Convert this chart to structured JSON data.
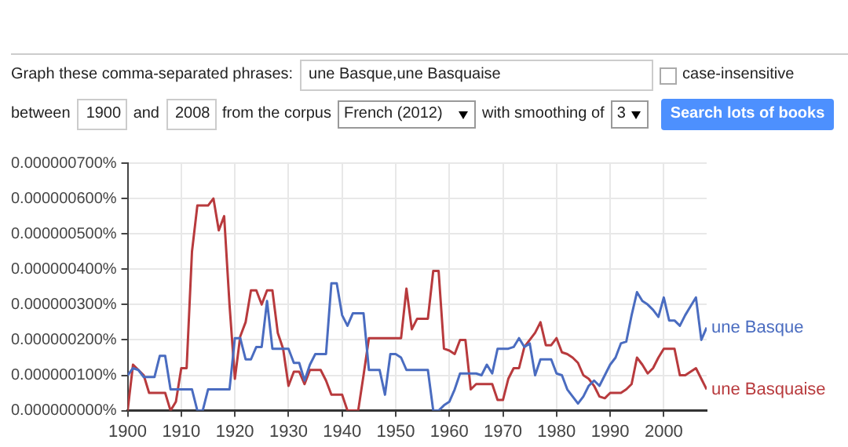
{
  "chart_data": {
    "type": "line",
    "annotations": [
      "Graph these comma-separated phrases:",
      "une Basque,une Basquaise",
      "case-insensitive",
      "between",
      "1900",
      "and",
      "2008",
      "from the corpus",
      "French (2012)",
      "with smoothing of",
      "3",
      "Search lots of books"
    ],
    "x": [
      1900,
      1901,
      1902,
      1903,
      1904,
      1905,
      1906,
      1907,
      1908,
      1909,
      1910,
      1911,
      1912,
      1913,
      1914,
      1915,
      1916,
      1917,
      1918,
      1919,
      1920,
      1921,
      1922,
      1923,
      1924,
      1925,
      1926,
      1927,
      1928,
      1929,
      1930,
      1931,
      1932,
      1933,
      1934,
      1935,
      1936,
      1937,
      1938,
      1939,
      1940,
      1941,
      1942,
      1943,
      1944,
      1945,
      1946,
      1947,
      1948,
      1949,
      1950,
      1951,
      1952,
      1953,
      1954,
      1955,
      1956,
      1957,
      1958,
      1959,
      1960,
      1961,
      1962,
      1963,
      1964,
      1965,
      1966,
      1967,
      1968,
      1969,
      1970,
      1971,
      1972,
      1973,
      1974,
      1975,
      1976,
      1977,
      1978,
      1979,
      1980,
      1981,
      1982,
      1983,
      1984,
      1985,
      1986,
      1987,
      1988,
      1989,
      1990,
      1991,
      1992,
      1993,
      1994,
      1995,
      1996,
      1997,
      1998,
      1999,
      2000,
      2001,
      2002,
      2003,
      2004,
      2005,
      2006,
      2007,
      2008
    ],
    "series": [
      {
        "name": "une Basque",
        "color": "#4a6cc0",
        "values": [
          1e-07,
          1.2e-07,
          1.15e-07,
          9.5e-08,
          9.5e-08,
          9.5e-08,
          1.55e-07,
          1.55e-07,
          6e-08,
          6e-08,
          6e-08,
          6e-08,
          6e-08,
          0,
          0,
          6e-08,
          6e-08,
          6e-08,
          6e-08,
          6e-08,
          2.05e-07,
          2.05e-07,
          1.45e-07,
          1.45e-07,
          1.8e-07,
          1.8e-07,
          3.1e-07,
          1.75e-07,
          1.75e-07,
          1.75e-07,
          1.75e-07,
          1.35e-07,
          1.35e-07,
          8.5e-08,
          1.3e-07,
          1.6e-07,
          1.6e-07,
          1.6e-07,
          3.6e-07,
          3.6e-07,
          2.7e-07,
          2.4e-07,
          2.75e-07,
          2.75e-07,
          2.75e-07,
          1.15e-07,
          1.15e-07,
          1.15e-07,
          4.5e-08,
          1.6e-07,
          1.6e-07,
          1.5e-07,
          1.15e-07,
          1.15e-07,
          1.15e-07,
          1.15e-07,
          1.15e-07,
          0,
          0,
          1.5e-08,
          2.5e-08,
          6e-08,
          1.05e-07,
          1.05e-07,
          1.05e-07,
          1.05e-07,
          1e-07,
          1.3e-07,
          1.05e-07,
          1.75e-07,
          1.75e-07,
          1.75e-07,
          1.8e-07,
          2.05e-07,
          1.8e-07,
          1.9e-07,
          1e-07,
          1.45e-07,
          1.45e-07,
          1.45e-07,
          1.05e-07,
          1e-07,
          6e-08,
          4e-08,
          2e-08,
          4e-08,
          7e-08,
          8.5e-08,
          7e-08,
          1e-07,
          1.3e-07,
          1.5e-07,
          1.9e-07,
          1.95e-07,
          2.7e-07,
          3.35e-07,
          3.1e-07,
          3e-07,
          2.85e-07,
          2.65e-07,
          3.2e-07,
          2.55e-07,
          2.55e-07,
          2.4e-07,
          2.7e-07,
          2.95e-07,
          3.2e-07,
          2e-07,
          2.35e-07
        ]
      },
      {
        "name": "une Basquaise",
        "color": "#b83a3d",
        "values": [
          0,
          1.3e-07,
          1.15e-07,
          1e-07,
          5e-08,
          5e-08,
          5e-08,
          5e-08,
          0,
          2.5e-08,
          1.2e-07,
          1.2e-07,
          4.5e-07,
          5.8e-07,
          5.8e-07,
          5.8e-07,
          6e-07,
          5.1e-07,
          5.5e-07,
          3e-07,
          9e-08,
          2.1e-07,
          2.5e-07,
          3.4e-07,
          3.4e-07,
          3e-07,
          3.4e-07,
          3.4e-07,
          2.2e-07,
          1.75e-07,
          7e-08,
          1.1e-07,
          1.1e-07,
          7.5e-08,
          1.15e-07,
          1.15e-07,
          1.15e-07,
          8.5e-08,
          4.5e-08,
          4.5e-08,
          4.5e-08,
          0,
          0,
          0,
          1e-07,
          2.05e-07,
          2.05e-07,
          2.05e-07,
          2.05e-07,
          2.05e-07,
          2.05e-07,
          2.05e-07,
          3.45e-07,
          2.3e-07,
          2.6e-07,
          2.6e-07,
          2.6e-07,
          3.95e-07,
          3.95e-07,
          1.75e-07,
          1.7e-07,
          1.6e-07,
          2e-07,
          2e-07,
          6e-08,
          7.5e-08,
          7.5e-08,
          7.5e-08,
          7.5e-08,
          3e-08,
          3e-08,
          9e-08,
          1.2e-07,
          1.2e-07,
          1.8e-07,
          2e-07,
          2.2e-07,
          2.5e-07,
          1.85e-07,
          1.85e-07,
          2.05e-07,
          1.65e-07,
          1.6e-07,
          1.5e-07,
          1.35e-07,
          1e-07,
          9e-08,
          7e-08,
          4e-08,
          3.5e-08,
          5e-08,
          5e-08,
          5e-08,
          6e-08,
          7.5e-08,
          1.5e-07,
          1.3e-07,
          1.05e-07,
          1.2e-07,
          1.5e-07,
          1.75e-07,
          1.75e-07,
          1.75e-07,
          1e-07,
          1e-07,
          1.1e-07,
          1.2e-07,
          9e-08,
          6e-08
        ]
      }
    ],
    "xlim": [
      1900,
      2008
    ],
    "xticks": [
      1900,
      1910,
      1920,
      1930,
      1940,
      1950,
      1960,
      1970,
      1980,
      1990,
      2000
    ],
    "ylim": [
      0,
      7e-07
    ],
    "yticks": [
      {
        "value": 0,
        "label": "0.000000000%"
      },
      {
        "value": 1e-07,
        "label": "0.000000100%"
      },
      {
        "value": 2e-07,
        "label": "0.000000200%"
      },
      {
        "value": 3e-07,
        "label": "0.000000300%"
      },
      {
        "value": 4e-07,
        "label": "0.000000400%"
      },
      {
        "value": 5e-07,
        "label": "0.000000500%"
      },
      {
        "value": 6e-07,
        "label": "0.000000600%"
      },
      {
        "value": 7e-07,
        "label": "0.000000700%"
      }
    ],
    "grid": true,
    "legend": false,
    "marker": "none",
    "line_style": "solid"
  }
}
